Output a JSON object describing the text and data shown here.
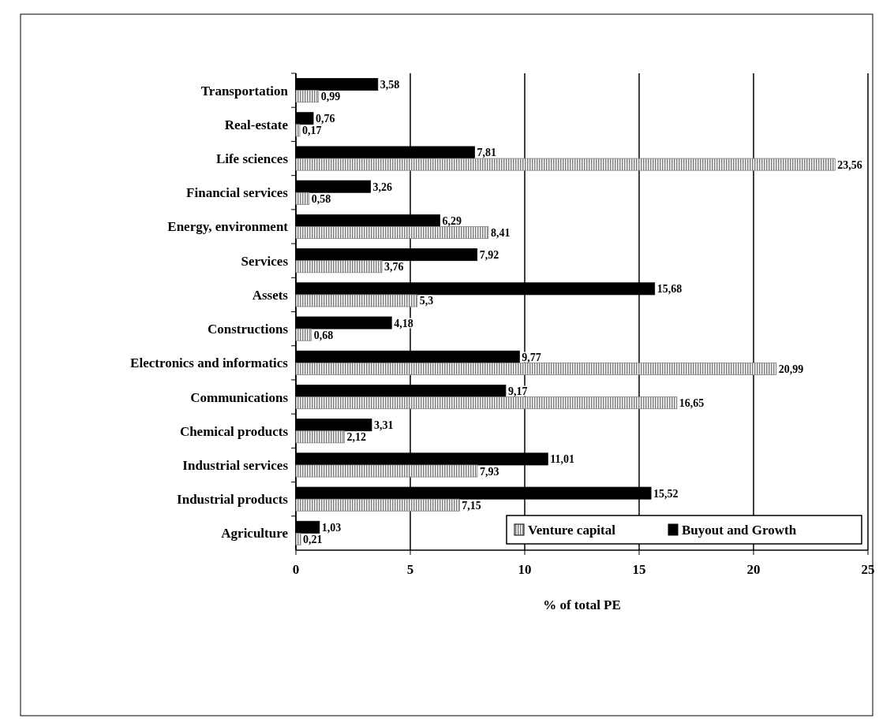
{
  "chart_data": {
    "type": "bar",
    "orientation": "horizontal",
    "xlabel": "% of total PE",
    "categories": [
      "Transportation",
      "Real-estate",
      "Life sciences",
      "Financial services",
      "Energy, environment",
      "Services",
      "Assets",
      "Constructions",
      "Electronics and informatics",
      "Communications",
      "Chemical products",
      "Industrial services",
      "Industrial products",
      "Agriculture"
    ],
    "series": [
      {
        "name": "Buyout and Growth",
        "color": "#000000",
        "values": [
          3.58,
          0.76,
          7.81,
          3.26,
          6.29,
          7.92,
          15.68,
          4.18,
          9.77,
          9.17,
          3.31,
          11.01,
          15.52,
          1.03
        ],
        "value_labels": [
          "3,58",
          "0,76",
          "7,81",
          "3,26",
          "6,29",
          "7,92",
          "15,68",
          "4,18",
          "9,77",
          "9,17",
          "3,31",
          "11,01",
          "15,52",
          "1,03"
        ]
      },
      {
        "name": "Venture capital",
        "color": "#808080",
        "values": [
          0.99,
          0.17,
          23.56,
          0.58,
          8.41,
          3.76,
          5.3,
          0.68,
          20.99,
          16.65,
          2.12,
          7.93,
          7.15,
          0.21
        ],
        "value_labels": [
          "0,99",
          "0,17",
          "23,56",
          "0,58",
          "8,41",
          "3,76",
          "5,3",
          "0,68",
          "20,99",
          "16,65",
          "2,12",
          "7,93",
          "7,15",
          "0,21"
        ]
      }
    ],
    "xlim": [
      0,
      25
    ],
    "xticks": [
      0,
      5,
      10,
      15,
      20,
      25
    ],
    "grid": "x",
    "legend": "bottom right"
  }
}
